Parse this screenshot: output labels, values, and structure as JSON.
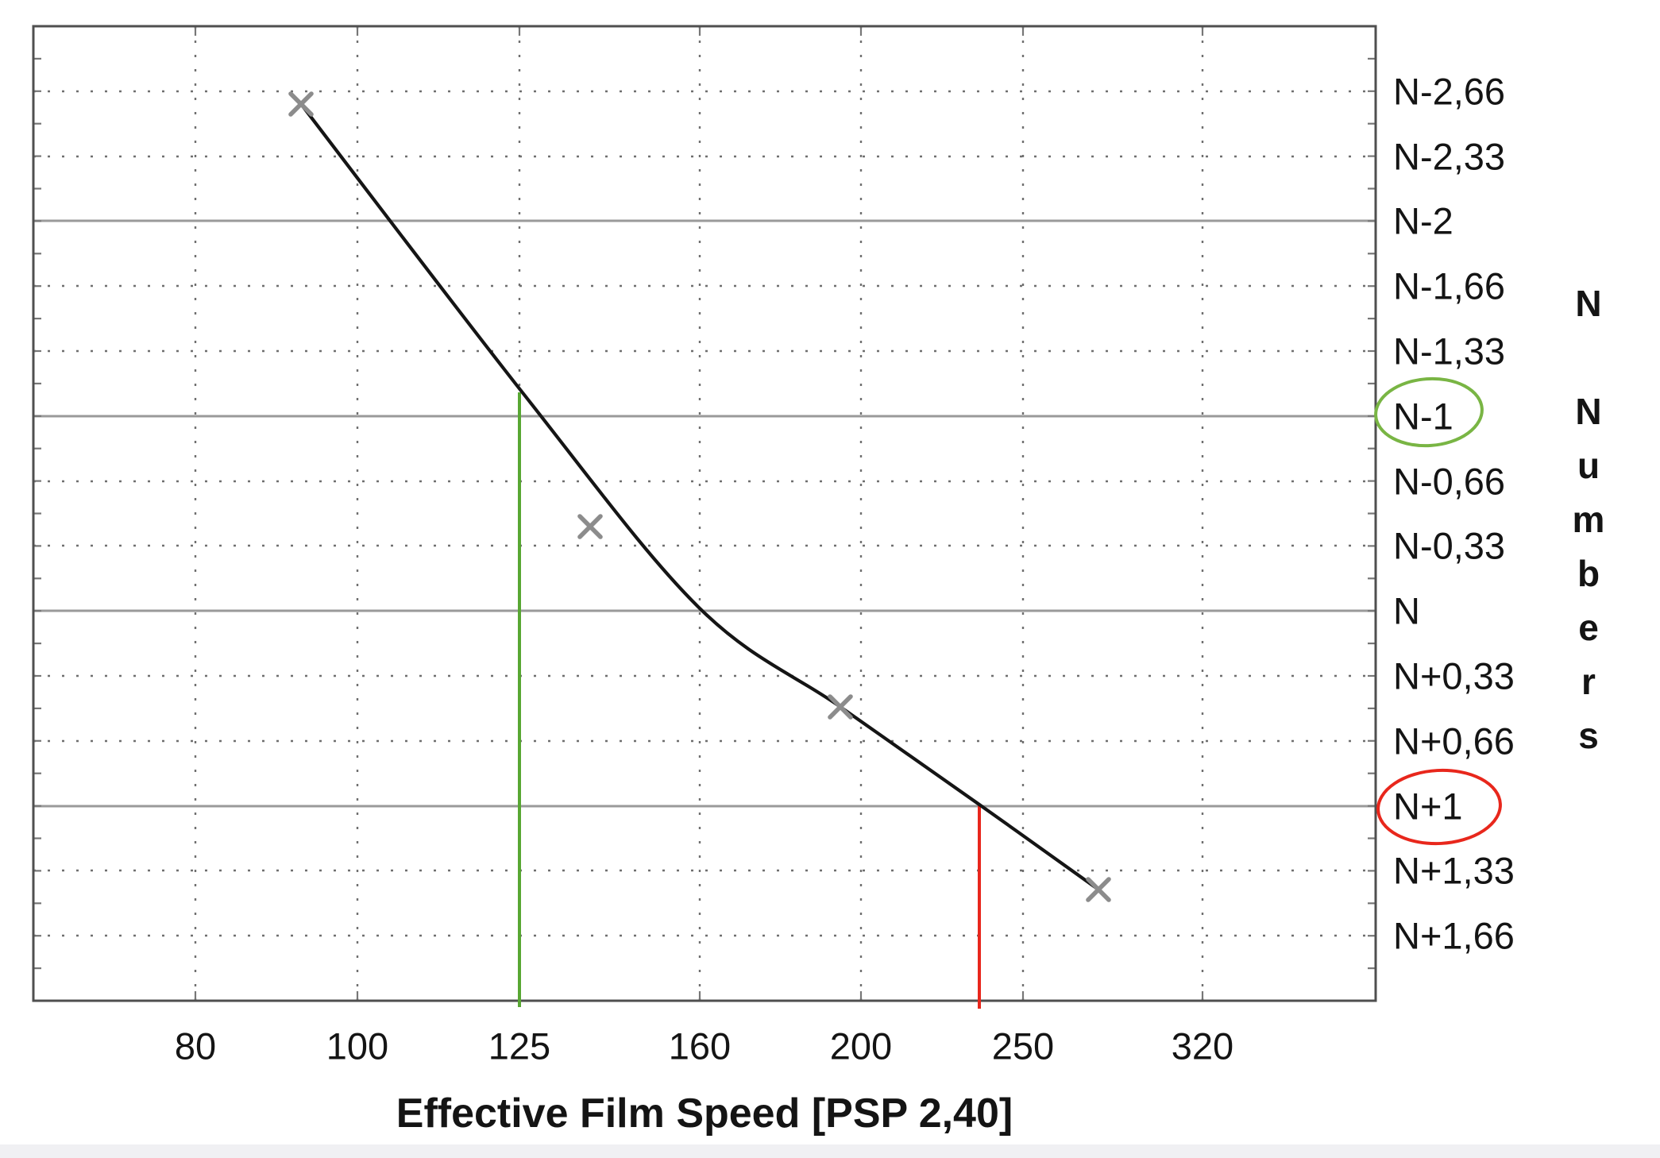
{
  "chart_data": {
    "type": "scatter",
    "title": "",
    "xlabel": "Effective Film Speed [PSP 2,40]",
    "ylabel": "N Numbers",
    "x_scale": "log",
    "x_ticks": [
      80,
      100,
      125,
      160,
      200,
      250,
      320
    ],
    "x_tick_labels": [
      "80",
      "100",
      "125",
      "160",
      "200",
      "250",
      "320"
    ],
    "x_range_approx": [
      64,
      405
    ],
    "y_scale": "linear-N-units",
    "y_range_N": [
      -3,
      2
    ],
    "y_gridlines_solid_N": [
      -2,
      -1,
      0,
      1
    ],
    "y_gridlines_dotted_N": [
      -2.66,
      -2.33,
      -1.66,
      -1.33,
      -0.66,
      -0.33,
      0.33,
      0.66,
      1.33,
      1.66
    ],
    "y_tick_labels": [
      "N-2,66",
      "N-2,33",
      "N-2",
      "N-1,66",
      "N-1,33",
      "N-1",
      "N-0,66",
      "N-0,33",
      "N",
      "N+0,33",
      "N+0,66",
      "N+1",
      "N+1,33",
      "N+1,66"
    ],
    "points": [
      {
        "speed": 92,
        "n": -2.6
      },
      {
        "speed": 138,
        "n": -0.43
      },
      {
        "speed": 194,
        "n": 0.49
      },
      {
        "speed": 277,
        "n": 1.43
      }
    ],
    "fit_curve": {
      "from": {
        "speed": 92,
        "n": -2.6
      },
      "to": {
        "speed": 277,
        "n": 1.43
      },
      "shape": "smooth falling curve through the four measured points"
    },
    "annotations": {
      "green_vline_speed": 125,
      "green_vline_meaning": "speed 125 corresponds to N-1 on the fitted curve",
      "green_circled_label": "N-1",
      "red_vline_speed": 235,
      "red_vline_meaning": "speed 235 corresponds to N+1 on the fitted curve",
      "red_circled_label": "N+1"
    },
    "legend": "none",
    "grid": "solid gray lines at whole N steps, dotted lines at 1/3 N steps and at every x tick"
  },
  "figure": {
    "x_axis": {
      "title": "Effective Film Speed [PSP 2,40]",
      "ticks": [
        "80",
        "100",
        "125",
        "160",
        "200",
        "250",
        "320"
      ]
    },
    "y_axis": {
      "labels": [
        "N-2,66",
        "N-2,33",
        "N-2",
        "N-1,66",
        "N-1,33",
        "N-1",
        "N-0,66",
        "N-0,33",
        "N",
        "N+0,33",
        "N+0,66",
        "N+1",
        "N+1,33",
        "N+1,66"
      ],
      "vertical_title": "N Numbers",
      "vertical_letters": [
        "N",
        "N",
        "u",
        "m",
        "b",
        "e",
        "r",
        "s"
      ]
    },
    "colors": {
      "curve": "#151515",
      "marker": "#8c8c8c",
      "grid_solid": "#9a9a9a",
      "grid_dotted": "#6f6f6f",
      "frame": "#4f4f4f",
      "green_line": "#58a733",
      "green_circle": "#79b544",
      "red_line": "#e8261c",
      "red_circle": "#e8271c",
      "footer_strip": "#f0f0f3"
    }
  }
}
